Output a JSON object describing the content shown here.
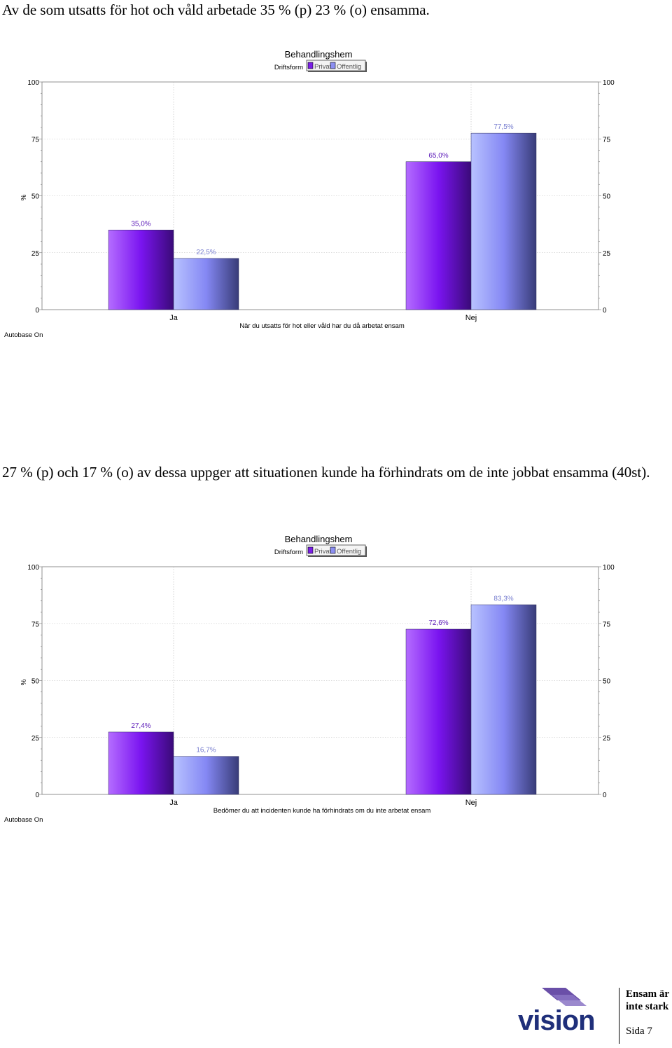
{
  "paragraphs": {
    "p1": "Av de som utsatts för hot och våld arbetade 35 % (p) 23 % (o) ensamma.",
    "p2": "27 % (p) och 17 % (o) av dessa uppger att situationen kunde ha förhindrats om de inte jobbat ensamma (40st)."
  },
  "chart_data": [
    {
      "type": "bar",
      "title": "Behandlingshem",
      "legend_title": "Driftsform",
      "categories": [
        "Ja",
        "Nej"
      ],
      "series": [
        {
          "name": "Privat",
          "values": [
            35.0,
            65.0
          ],
          "labels": [
            "35,0%",
            "65,0%"
          ],
          "color": "#7b1fe8"
        },
        {
          "name": "Offentlig",
          "values": [
            22.5,
            77.5
          ],
          "labels": [
            "22,5%",
            "77,5%"
          ],
          "color": "#8c8ff2"
        }
      ],
      "xlabel": "När du utsatts för hot eller våld har du då arbetat ensam",
      "ylabel": "%",
      "ylim": [
        0,
        100
      ],
      "yticks": [
        "0",
        "25",
        "50",
        "75",
        "100"
      ],
      "footnote": "Autobase On",
      "legend_position": "top-center",
      "grid": true
    },
    {
      "type": "bar",
      "title": "Behandlingshem",
      "legend_title": "Driftsform",
      "categories": [
        "Ja",
        "Nej"
      ],
      "series": [
        {
          "name": "Privat",
          "values": [
            27.4,
            72.6
          ],
          "labels": [
            "27,4%",
            "72,6%"
          ],
          "color": "#7b1fe8"
        },
        {
          "name": "Offentlig",
          "values": [
            16.7,
            83.3
          ],
          "labels": [
            "16,7%",
            "83,3%"
          ],
          "color": "#8c8ff2"
        }
      ],
      "xlabel": "Bedömer du att incidenten kunde ha förhindrats om du inte arbetat ensam",
      "ylabel": "%",
      "ylim": [
        0,
        100
      ],
      "yticks": [
        "0",
        "25",
        "50",
        "75",
        "100"
      ],
      "footnote": "Autobase On",
      "legend_position": "top-center",
      "grid": true
    }
  ],
  "footer": {
    "logo_text": "vision",
    "slogan_line1": "Ensam är",
    "slogan_line2": "inte stark",
    "page": "Sida 7"
  }
}
